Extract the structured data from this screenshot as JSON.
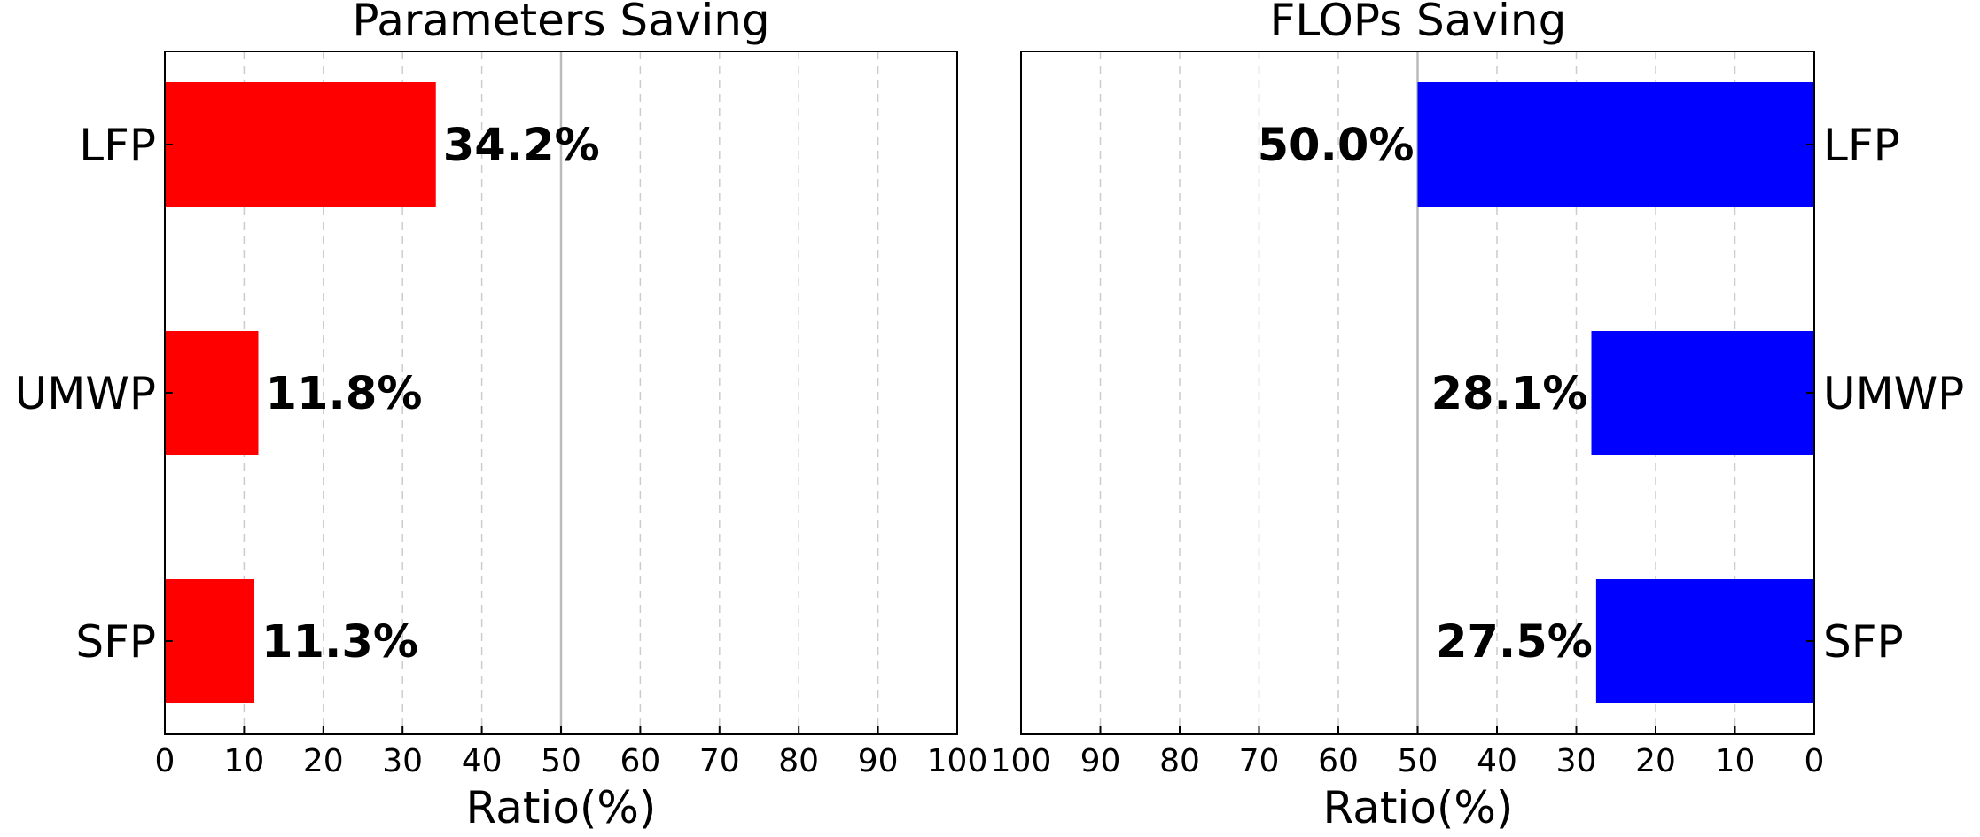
{
  "chart_data": [
    {
      "type": "bar",
      "orientation": "horizontal",
      "title": "Parameters Saving",
      "xlabel": "Ratio(%)",
      "xlim": [
        0,
        100
      ],
      "x_inverted": false,
      "xticks": [
        "0",
        "10",
        "20",
        "30",
        "40",
        "50",
        "60",
        "70",
        "80",
        "90",
        "100"
      ],
      "categories": [
        "LFP",
        "UMWP",
        "SFP"
      ],
      "values": [
        34.2,
        11.8,
        11.3
      ],
      "value_labels": [
        "34.2%",
        "11.8%",
        "11.3%"
      ],
      "color": "#ff0000",
      "category_axis": "left",
      "grid": "vertical dashed",
      "reference_line": 50
    },
    {
      "type": "bar",
      "orientation": "horizontal",
      "title": "FLOPs Saving",
      "xlabel": "Ratio(%)",
      "xlim": [
        0,
        100
      ],
      "x_inverted": true,
      "xticks": [
        "0",
        "10",
        "20",
        "30",
        "40",
        "50",
        "60",
        "70",
        "80",
        "90",
        "100"
      ],
      "categories": [
        "LFP",
        "UMWP",
        "SFP"
      ],
      "values": [
        50.0,
        28.1,
        27.5
      ],
      "value_labels": [
        "50.0%",
        "28.1%",
        "27.5%"
      ],
      "color": "#0000ff",
      "category_axis": "right",
      "grid": "vertical dashed",
      "reference_line": 50
    }
  ]
}
